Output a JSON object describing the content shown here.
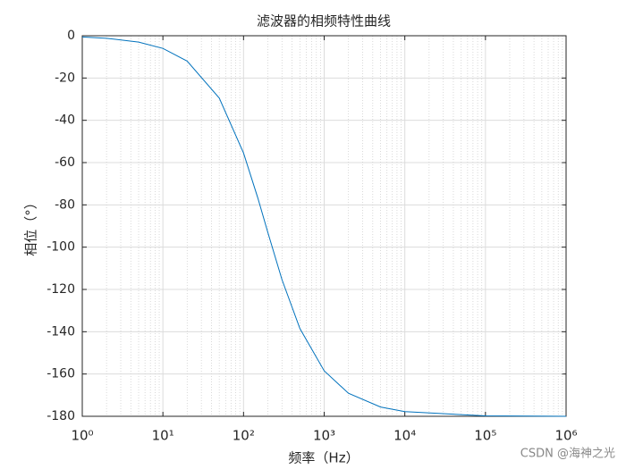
{
  "chart_data": {
    "type": "line",
    "title": "滤波器的相频特性曲线",
    "x_label": "频率（Hz）",
    "y_label": "相位（°）",
    "x": [
      1,
      2,
      5,
      10,
      20,
      50,
      100,
      150,
      200,
      300,
      500,
      1000,
      2000,
      5000,
      10000,
      100000,
      1000000
    ],
    "series": [
      {
        "color": "#0072bd",
        "values": [
          -0.6,
          -1.2,
          -3.0,
          -6.0,
          -12.0,
          -29.5,
          -55.5,
          -76.6,
          -93.0,
          -115.4,
          -138.5,
          -158.5,
          -169.1,
          -175.6,
          -177.8,
          -179.8,
          -180.0
        ]
      }
    ],
    "x_scale": "log",
    "xlim": [
      1,
      1000000
    ],
    "xticks": [
      {
        "value": 1,
        "label": "10⁰"
      },
      {
        "value": 10,
        "label": "10¹"
      },
      {
        "value": 100,
        "label": "10²"
      },
      {
        "value": 1000,
        "label": "10³"
      },
      {
        "value": 10000,
        "label": "10⁴"
      },
      {
        "value": 100000,
        "label": "10⁵"
      },
      {
        "value": 1000000,
        "label": "10⁶"
      }
    ],
    "ylim": [
      -180,
      0
    ],
    "yticks": [
      -180,
      -160,
      -140,
      -120,
      -100,
      -80,
      -60,
      -40,
      -20,
      0
    ],
    "grid": true,
    "watermark": "CSDN @海神之光"
  }
}
